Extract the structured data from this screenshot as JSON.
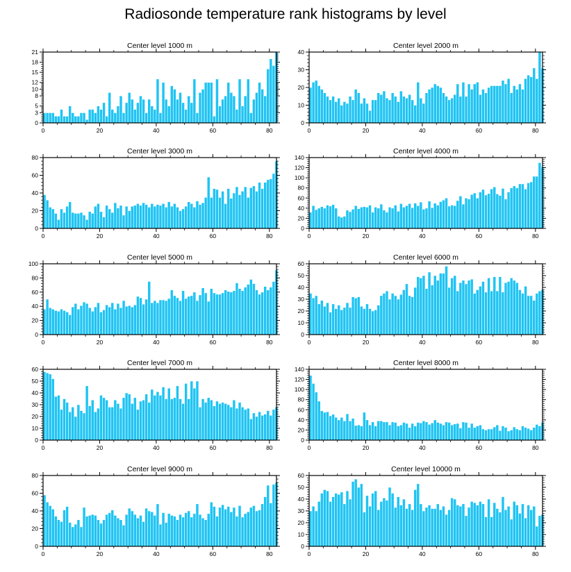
{
  "title": "Radiosonde temperature rank histograms by level",
  "colors": {
    "bar": "#1fc4f3",
    "bar_edge": "#ffffff",
    "axis": "#000000"
  },
  "chart_data": [
    {
      "type": "bar",
      "title": "Center level 1000 m",
      "ylim": [
        0,
        21
      ],
      "xticks": [
        0,
        20,
        40,
        60,
        80
      ],
      "yticks": [
        0,
        3,
        5,
        8,
        10,
        12,
        15,
        18,
        21
      ],
      "values": [
        3,
        3,
        3,
        3,
        2,
        2,
        4,
        2,
        2,
        5,
        3,
        2,
        2,
        3,
        3,
        1,
        4,
        4,
        3,
        5,
        4,
        6,
        2,
        9,
        4,
        3,
        5,
        8,
        3,
        6,
        9,
        7,
        4,
        6,
        8,
        7,
        3,
        7,
        5,
        4,
        13,
        3,
        12,
        7,
        5,
        11,
        10,
        7,
        9,
        6,
        4,
        8,
        6,
        13,
        3,
        9,
        10,
        12,
        12,
        12,
        2,
        13,
        5,
        7,
        8,
        12,
        9,
        8,
        4,
        13,
        5,
        8,
        13,
        3,
        7,
        9,
        12,
        10,
        8,
        16,
        19,
        17,
        21
      ]
    },
    {
      "type": "bar",
      "title": "Center level 2000 m",
      "ylim": [
        0,
        40
      ],
      "xticks": [
        0,
        20,
        40,
        60,
        80
      ],
      "yticks": [
        0,
        10,
        20,
        30,
        40
      ],
      "values": [
        20,
        23,
        24,
        21,
        19,
        17,
        15,
        13,
        15,
        12,
        14,
        10,
        12,
        11,
        15,
        13,
        19,
        17,
        11,
        14,
        11,
        7,
        13,
        13,
        17,
        16,
        18,
        14,
        13,
        17,
        15,
        12,
        18,
        15,
        14,
        16,
        13,
        10,
        23,
        14,
        11,
        17,
        19,
        20,
        22,
        21,
        20,
        17,
        15,
        13,
        14,
        16,
        22,
        15,
        23,
        15,
        22,
        19,
        22,
        23,
        16,
        19,
        17,
        20,
        21,
        21,
        21,
        21,
        24,
        22,
        25,
        17,
        21,
        19,
        22,
        19,
        25,
        27,
        26,
        31,
        25,
        40,
        31
      ]
    },
    {
      "type": "bar",
      "title": "Center level 3000 m",
      "ylim": [
        0,
        80
      ],
      "xticks": [
        0,
        20,
        40,
        60,
        80
      ],
      "yticks": [
        0,
        20,
        40,
        60,
        80
      ],
      "values": [
        38,
        32,
        24,
        22,
        17,
        10,
        22,
        18,
        25,
        30,
        18,
        17,
        17,
        18,
        15,
        10,
        19,
        17,
        25,
        28,
        19,
        13,
        26,
        22,
        18,
        29,
        23,
        26,
        15,
        25,
        20,
        25,
        26,
        28,
        26,
        29,
        27,
        24,
        28,
        25,
        27,
        26,
        28,
        24,
        30,
        25,
        28,
        24,
        20,
        22,
        25,
        30,
        28,
        24,
        31,
        27,
        29,
        35,
        58,
        35,
        45,
        44,
        35,
        42,
        28,
        45,
        34,
        40,
        47,
        38,
        42,
        47,
        35,
        46,
        48,
        42,
        52,
        45,
        52,
        55,
        56,
        62,
        76
      ]
    },
    {
      "type": "bar",
      "title": "Center level 4000 m",
      "ylim": [
        0,
        140
      ],
      "xticks": [
        0,
        20,
        40,
        60,
        80
      ],
      "yticks": [
        0,
        20,
        40,
        60,
        80,
        100,
        120,
        140
      ],
      "values": [
        32,
        45,
        37,
        40,
        43,
        40,
        46,
        44,
        47,
        40,
        24,
        22,
        24,
        36,
        33,
        38,
        45,
        39,
        42,
        43,
        42,
        46,
        32,
        42,
        40,
        48,
        36,
        32,
        42,
        40,
        46,
        34,
        49,
        42,
        45,
        49,
        41,
        50,
        45,
        52,
        38,
        40,
        54,
        41,
        50,
        46,
        53,
        56,
        60,
        44,
        46,
        45,
        55,
        64,
        48,
        60,
        58,
        67,
        70,
        60,
        72,
        77,
        66,
        69,
        78,
        82,
        68,
        65,
        79,
        58,
        72,
        80,
        84,
        80,
        88,
        88,
        78,
        90,
        92,
        103,
        103,
        130,
        122
      ]
    },
    {
      "type": "bar",
      "title": "Center level 5000 m",
      "ylim": [
        0,
        100
      ],
      "xticks": [
        0,
        20,
        40,
        60,
        80
      ],
      "yticks": [
        0,
        20,
        40,
        60,
        80,
        100
      ],
      "values": [
        36,
        50,
        38,
        36,
        34,
        33,
        36,
        34,
        32,
        28,
        39,
        44,
        36,
        41,
        46,
        44,
        38,
        33,
        39,
        45,
        32,
        35,
        42,
        39,
        45,
        36,
        44,
        38,
        48,
        40,
        41,
        39,
        42,
        54,
        52,
        43,
        50,
        75,
        45,
        48,
        45,
        49,
        49,
        48,
        51,
        63,
        55,
        52,
        48,
        62,
        51,
        54,
        55,
        60,
        48,
        56,
        66,
        59,
        47,
        65,
        59,
        57,
        57,
        59,
        63,
        61,
        60,
        62,
        73,
        65,
        62,
        67,
        71,
        78,
        72,
        63,
        57,
        60,
        68,
        63,
        67,
        75,
        91
      ]
    },
    {
      "type": "bar",
      "title": "Center level 6000 m",
      "ylim": [
        0,
        60
      ],
      "xticks": [
        0,
        20,
        40,
        60,
        80
      ],
      "yticks": [
        0,
        10,
        20,
        30,
        40,
        50,
        60
      ],
      "values": [
        35,
        31,
        33,
        26,
        29,
        24,
        27,
        19,
        26,
        22,
        25,
        21,
        23,
        27,
        23,
        32,
        31,
        32,
        24,
        22,
        26,
        22,
        20,
        21,
        25,
        33,
        35,
        37,
        30,
        35,
        33,
        30,
        34,
        38,
        43,
        33,
        32,
        40,
        49,
        48,
        50,
        39,
        53,
        42,
        50,
        46,
        52,
        52,
        58,
        40,
        48,
        50,
        37,
        44,
        46,
        43,
        46,
        47,
        35,
        38,
        41,
        45,
        36,
        48,
        37,
        49,
        37,
        49,
        36,
        44,
        45,
        48,
        46,
        44,
        38,
        35,
        41,
        33,
        33,
        29,
        35,
        37,
        38
      ]
    },
    {
      "type": "bar",
      "title": "Center level 7000 m",
      "ylim": [
        0,
        60
      ],
      "xticks": [
        0,
        20,
        40,
        60,
        80
      ],
      "yticks": [
        0,
        10,
        20,
        30,
        40,
        50,
        60
      ],
      "values": [
        58,
        57,
        56,
        52,
        37,
        38,
        26,
        35,
        32,
        24,
        28,
        20,
        30,
        25,
        23,
        46,
        29,
        34,
        24,
        27,
        38,
        36,
        34,
        28,
        28,
        34,
        31,
        27,
        36,
        40,
        39,
        31,
        36,
        26,
        33,
        34,
        39,
        32,
        43,
        38,
        41,
        38,
        45,
        35,
        44,
        35,
        36,
        46,
        35,
        31,
        48,
        35,
        50,
        44,
        50,
        28,
        35,
        32,
        36,
        34,
        29,
        33,
        31,
        32,
        31,
        30,
        28,
        34,
        27,
        32,
        28,
        26,
        27,
        18,
        23,
        20,
        24,
        21,
        22,
        25,
        21,
        26,
        28
      ]
    },
    {
      "type": "bar",
      "title": "Center level 8000 m",
      "ylim": [
        0,
        140
      ],
      "xticks": [
        0,
        20,
        40,
        60,
        80
      ],
      "yticks": [
        0,
        20,
        40,
        60,
        80,
        100,
        120,
        140
      ],
      "values": [
        128,
        112,
        95,
        77,
        58,
        55,
        56,
        48,
        51,
        45,
        40,
        45,
        38,
        52,
        38,
        43,
        29,
        30,
        28,
        55,
        40,
        30,
        36,
        28,
        38,
        38,
        36,
        36,
        30,
        36,
        35,
        28,
        30,
        35,
        33,
        25,
        33,
        28,
        35,
        34,
        38,
        36,
        31,
        34,
        40,
        35,
        33,
        30,
        36,
        35,
        30,
        32,
        33,
        24,
        36,
        35,
        25,
        33,
        25,
        28,
        30,
        22,
        20,
        22,
        22,
        26,
        30,
        19,
        28,
        25,
        18,
        20,
        26,
        22,
        20,
        28,
        25,
        23,
        20,
        25,
        31,
        28,
        35
      ]
    },
    {
      "type": "bar",
      "title": "Center level 9000 m",
      "ylim": [
        0,
        80
      ],
      "xticks": [
        0,
        20,
        40,
        60,
        80
      ],
      "yticks": [
        0,
        20,
        40,
        60,
        80
      ],
      "values": [
        58,
        50,
        46,
        42,
        34,
        30,
        28,
        41,
        45,
        27,
        22,
        25,
        30,
        22,
        44,
        34,
        35,
        36,
        35,
        30,
        26,
        30,
        36,
        38,
        41,
        35,
        32,
        30,
        24,
        36,
        43,
        40,
        36,
        32,
        35,
        28,
        43,
        40,
        39,
        35,
        48,
        25,
        38,
        27,
        37,
        35,
        34,
        30,
        36,
        33,
        38,
        40,
        33,
        37,
        48,
        36,
        32,
        30,
        37,
        50,
        45,
        34,
        44,
        47,
        42,
        45,
        39,
        44,
        34,
        46,
        33,
        37,
        39,
        44,
        46,
        40,
        41,
        48,
        56,
        69,
        49,
        70,
        72
      ]
    },
    {
      "type": "bar",
      "title": "Center level 10000 m",
      "ylim": [
        0,
        60
      ],
      "xticks": [
        0,
        20,
        40,
        60,
        80
      ],
      "yticks": [
        0,
        10,
        20,
        30,
        40,
        50,
        60
      ],
      "values": [
        30,
        34,
        30,
        38,
        45,
        48,
        47,
        38,
        42,
        45,
        44,
        46,
        36,
        47,
        40,
        55,
        57,
        50,
        53,
        29,
        43,
        34,
        45,
        47,
        31,
        38,
        41,
        39,
        50,
        45,
        33,
        42,
        35,
        40,
        32,
        36,
        31,
        48,
        53,
        36,
        30,
        33,
        35,
        32,
        32,
        36,
        31,
        34,
        27,
        31,
        41,
        40,
        35,
        34,
        36,
        26,
        33,
        38,
        37,
        35,
        38,
        36,
        25,
        40,
        25,
        37,
        32,
        29,
        42,
        31,
        34,
        23,
        38,
        35,
        28,
        36,
        24,
        35,
        31,
        34,
        17,
        26,
        27
      ]
    }
  ]
}
